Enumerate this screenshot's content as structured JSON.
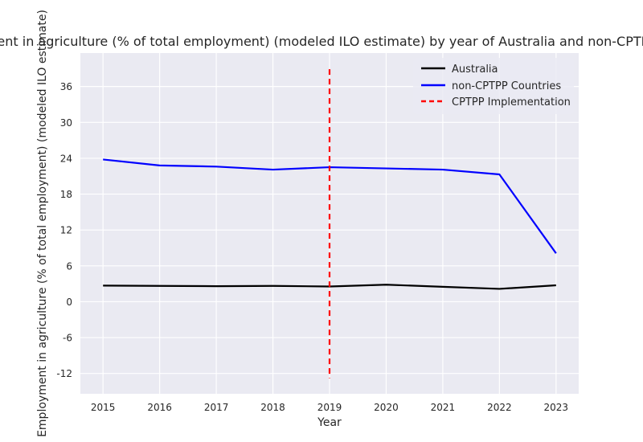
{
  "chart_data": {
    "type": "line",
    "title": "Employment in agriculture (% of total employment) (modeled ILO estimate) by year of Australia and non-CPTPP Countries",
    "xlabel": "Year",
    "ylabel": "Employment in agriculture (% of total employment) (modeled ILO estimate)",
    "x": [
      2015,
      2016,
      2017,
      2018,
      2019,
      2020,
      2021,
      2022,
      2023
    ],
    "xlim": [
      2014.6,
      2023.4
    ],
    "ylim": [
      -15.4,
      41.6
    ],
    "yticks": [
      -12,
      -6,
      0,
      6,
      12,
      18,
      24,
      30,
      36
    ],
    "grid": true,
    "legend_position": "upper-right",
    "series": [
      {
        "name": "Australia",
        "color": "#000000",
        "style": "solid",
        "values": [
          2.7,
          2.65,
          2.6,
          2.65,
          2.55,
          2.85,
          2.5,
          2.15,
          2.75
        ]
      },
      {
        "name": "non-CPTPP Countries",
        "color": "#0000ff",
        "style": "solid",
        "values": [
          23.8,
          22.8,
          22.6,
          22.1,
          22.5,
          22.3,
          22.1,
          21.3,
          8.1
        ]
      }
    ],
    "vlines": [
      {
        "name": "CPTPP Implementation",
        "color": "#ff0000",
        "style": "dashed",
        "x": 2019,
        "y_range": [
          -12.8,
          38.9
        ]
      }
    ]
  }
}
